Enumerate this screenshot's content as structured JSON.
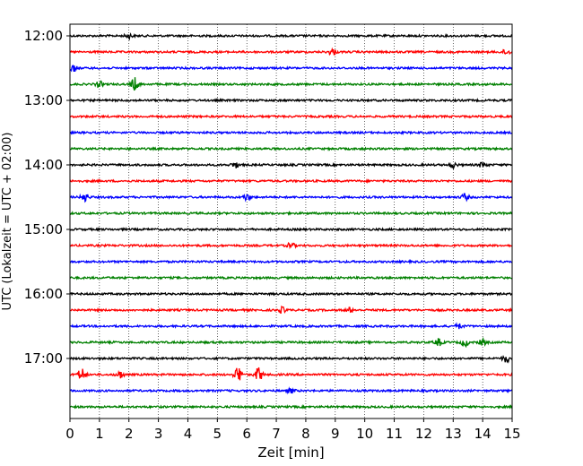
{
  "chart_data": {
    "type": "line",
    "title": "",
    "xlabel": "Zeit  [min]",
    "ylabel": "UTC (Lokalzeit = UTC + 02:00)",
    "xlim": [
      0,
      15
    ],
    "x_ticks": [
      0,
      1,
      2,
      3,
      4,
      5,
      6,
      7,
      8,
      9,
      10,
      11,
      12,
      13,
      14,
      15
    ],
    "x_tick_labels": [
      "0",
      "1",
      "2",
      "3",
      "4",
      "5",
      "6",
      "7",
      "8",
      "9",
      "10",
      "11",
      "12",
      "13",
      "14",
      "15"
    ],
    "y_tick_labels": [
      "12:00",
      "13:00",
      "14:00",
      "15:00",
      "16:00",
      "17:00"
    ],
    "y_tick_rows": [
      0,
      4,
      8,
      12,
      16,
      20
    ],
    "grid": {
      "x": true,
      "y": false
    },
    "trace_count": 24,
    "trace_minutes": 15,
    "trace_colors": [
      "#000000",
      "#ff0000",
      "#0000ff",
      "#008000"
    ],
    "events": [
      {
        "trace": 0,
        "x": 2.0,
        "amp": 2.5
      },
      {
        "trace": 1,
        "x": 8.9,
        "amp": 3.5
      },
      {
        "trace": 1,
        "x": 14.8,
        "amp": 3.0
      },
      {
        "trace": 2,
        "x": 0.1,
        "amp": 4.0
      },
      {
        "trace": 3,
        "x": 2.2,
        "amp": 7.0
      },
      {
        "trace": 3,
        "x": 1.0,
        "amp": 3.0
      },
      {
        "trace": 8,
        "x": 5.6,
        "amp": 3.0
      },
      {
        "trace": 8,
        "x": 13.0,
        "amp": 3.0
      },
      {
        "trace": 8,
        "x": 14.0,
        "amp": 3.0
      },
      {
        "trace": 10,
        "x": 0.5,
        "amp": 5.0
      },
      {
        "trace": 10,
        "x": 6.0,
        "amp": 3.5
      },
      {
        "trace": 10,
        "x": 13.4,
        "amp": 3.5
      },
      {
        "trace": 13,
        "x": 7.5,
        "amp": 3.0
      },
      {
        "trace": 17,
        "x": 7.2,
        "amp": 3.0
      },
      {
        "trace": 17,
        "x": 9.5,
        "amp": 2.5
      },
      {
        "trace": 18,
        "x": 13.2,
        "amp": 2.5
      },
      {
        "trace": 19,
        "x": 12.5,
        "amp": 4.0
      },
      {
        "trace": 19,
        "x": 13.4,
        "amp": 4.0
      },
      {
        "trace": 19,
        "x": 14.0,
        "amp": 3.0
      },
      {
        "trace": 20,
        "x": 14.8,
        "amp": 4.0
      },
      {
        "trace": 21,
        "x": 0.4,
        "amp": 7.0
      },
      {
        "trace": 21,
        "x": 1.7,
        "amp": 4.0
      },
      {
        "trace": 21,
        "x": 5.7,
        "amp": 9.0
      },
      {
        "trace": 21,
        "x": 6.4,
        "amp": 8.0
      },
      {
        "trace": 22,
        "x": 7.5,
        "amp": 2.5
      }
    ]
  }
}
